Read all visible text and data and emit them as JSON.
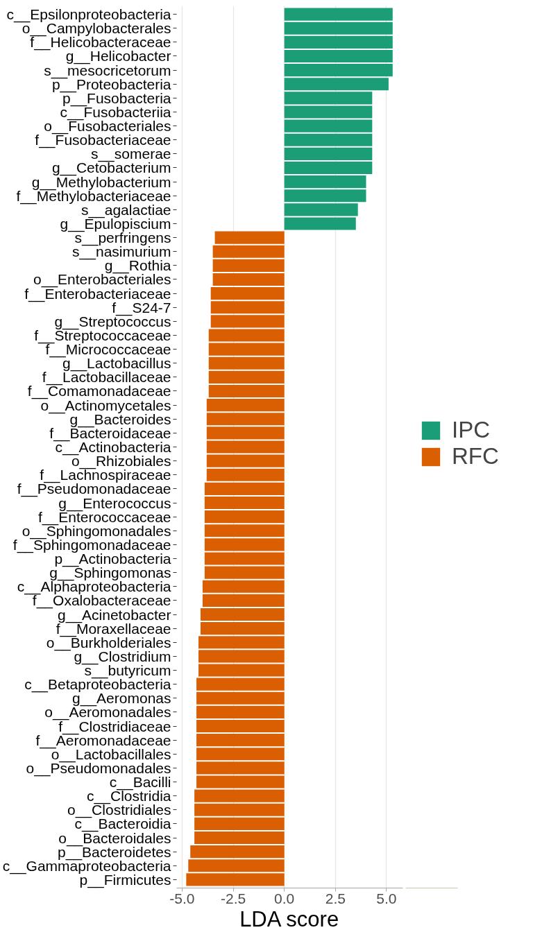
{
  "chart_data": {
    "type": "bar",
    "orientation": "horizontal",
    "xlabel": "LDA score",
    "categories": [
      "c__Epsilonproteobacteria",
      "o__Campylobacterales",
      "f__Helicobacteraceae",
      "g__Helicobacter",
      "s__mesocricetorum",
      "p__Proteobacteria",
      "p__Fusobacteria",
      "c__Fusobacteriia",
      "o__Fusobacteriales",
      "f__Fusobacteriaceae",
      "s__somerae",
      "g__Cetobacterium",
      "g__Methylobacterium",
      "f__Methylobacteriaceae",
      "s__agalactiae",
      "g__Epulopiscium",
      "s__perfringens",
      "s__nasimurium",
      "g__Rothia",
      "o__Enterobacteriales",
      "f__Enterobacteriaceae",
      "f__S24-7",
      "g__Streptococcus",
      "f__Streptococcaceae",
      "f__Micrococcaceae",
      "g__Lactobacillus",
      "f__Lactobacillaceae",
      "f__Comamonadaceae",
      "o__Actinomycetales",
      "g__Bacteroides",
      "f__Bacteroidaceae",
      "c__Actinobacteria",
      "o__Rhizobiales",
      "f__Lachnospiraceae",
      "f__Pseudomonadaceae",
      "g__Enterococcus",
      "f__Enterococcaceae",
      "o__Sphingomonadales",
      "f__Sphingomonadaceae",
      "p__Actinobacteria",
      "g__Sphingomonas",
      "c__Alphaproteobacteria",
      "f__Oxalobacteraceae",
      "g__Acinetobacter",
      "f__Moraxellaceae",
      "o__Burkholderiales",
      "g__Clostridium",
      "s__butyricum",
      "c__Betaproteobacteria",
      "g__Aeromonas",
      "o__Aeromonadales",
      "f__Clostridiaceae",
      "f__Aeromonadaceae",
      "o__Lactobacillales",
      "o__Pseudomonadales",
      "c__Bacilli",
      "c__Clostridia",
      "o__Clostridiales",
      "c__Bacteroidia",
      "o__Bacteroidales",
      "p__Bacteroidetes",
      "c__Gammaproteobacteria",
      "p__Firmicutes"
    ],
    "series": [
      {
        "name": "IPC",
        "color": "#1b9e77",
        "values": [
          5.3,
          5.3,
          5.3,
          5.3,
          5.3,
          5.1,
          4.3,
          4.3,
          4.3,
          4.3,
          4.3,
          4.3,
          4.0,
          4.0,
          3.6,
          3.5,
          null,
          null,
          null,
          null,
          null,
          null,
          null,
          null,
          null,
          null,
          null,
          null,
          null,
          null,
          null,
          null,
          null,
          null,
          null,
          null,
          null,
          null,
          null,
          null,
          null,
          null,
          null,
          null,
          null,
          null,
          null,
          null,
          null,
          null,
          null,
          null,
          null,
          null,
          null,
          null,
          null,
          null,
          null,
          null,
          null,
          null,
          null
        ]
      },
      {
        "name": "RFC",
        "color": "#d95f02",
        "values": [
          null,
          null,
          null,
          null,
          null,
          null,
          null,
          null,
          null,
          null,
          null,
          null,
          null,
          null,
          null,
          null,
          -3.4,
          -3.5,
          -3.5,
          -3.5,
          -3.6,
          -3.6,
          -3.6,
          -3.7,
          -3.7,
          -3.7,
          -3.7,
          -3.7,
          -3.8,
          -3.8,
          -3.8,
          -3.8,
          -3.8,
          -3.8,
          -3.9,
          -3.9,
          -3.9,
          -3.9,
          -3.9,
          -3.9,
          -3.9,
          -4.0,
          -4.0,
          -4.1,
          -4.1,
          -4.2,
          -4.2,
          -4.2,
          -4.3,
          -4.3,
          -4.3,
          -4.3,
          -4.3,
          -4.3,
          -4.3,
          -4.3,
          -4.4,
          -4.4,
          -4.4,
          -4.4,
          -4.6,
          -4.7,
          -4.8
        ]
      }
    ],
    "xlim": [
      -5.27,
      5.8
    ],
    "xticks": [
      {
        "value": -5,
        "label": "-5.0"
      },
      {
        "value": -2.5,
        "label": "-2.5"
      },
      {
        "value": 0,
        "label": "0.0"
      },
      {
        "value": 2.5,
        "label": "2.5"
      },
      {
        "value": 5,
        "label": "5.0"
      }
    ],
    "grid": "x",
    "legend": "right"
  }
}
